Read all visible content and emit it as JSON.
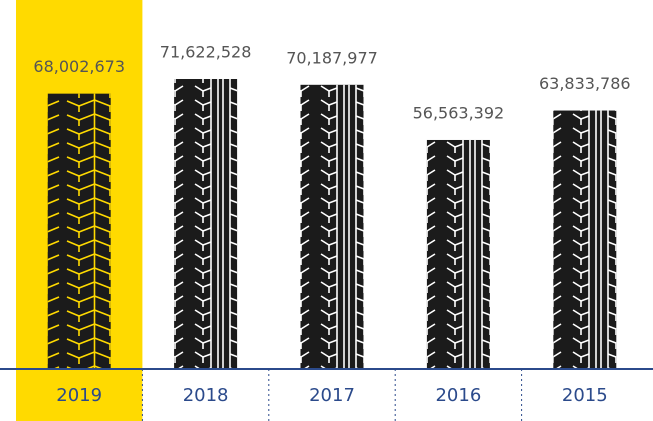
{
  "chart_data": {
    "type": "bar",
    "categories": [
      "2019",
      "2018",
      "2017",
      "2016",
      "2015"
    ],
    "values": [
      68002673,
      71622528,
      70187977,
      56563392,
      63833786
    ],
    "value_labels": [
      "68,002,673",
      "71,622,528",
      "70,187,977",
      "56,563,392",
      "63,833,786"
    ],
    "color": "#1b1b1b",
    "highlight_index": 0,
    "highlight_color": "#ffda00",
    "axis_color": "#2b4a8b"
  }
}
